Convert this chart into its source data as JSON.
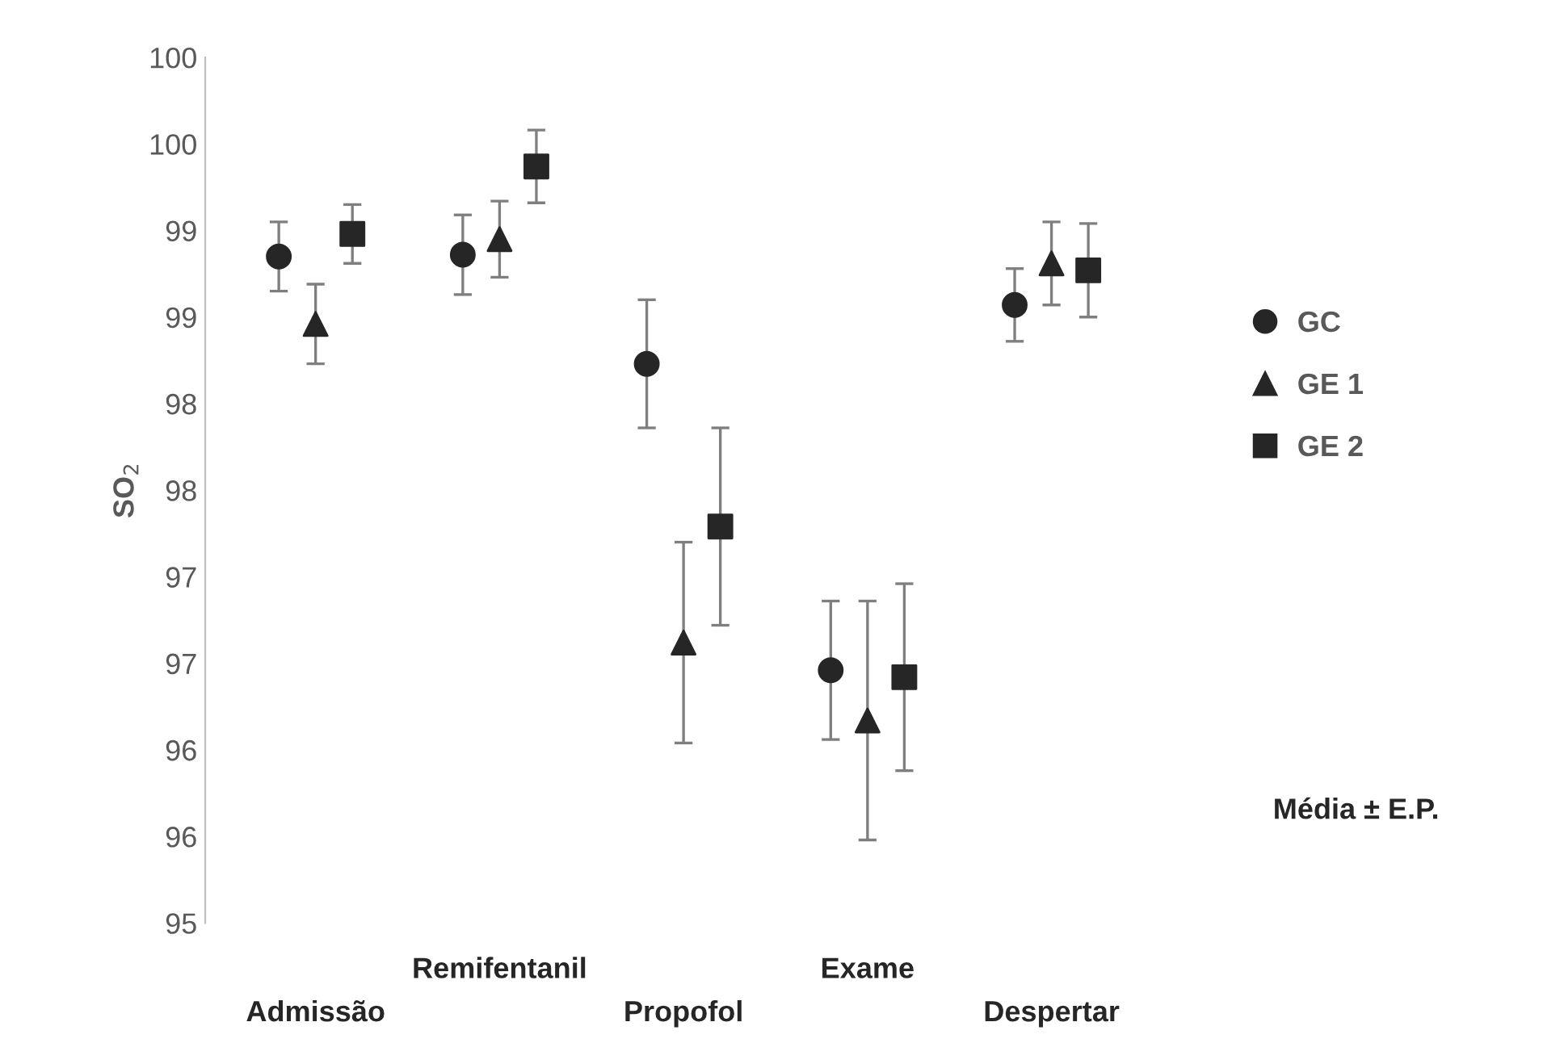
{
  "chart_data": {
    "type": "scatter",
    "ylabel": "SO$_{2}$",
    "categories": [
      "Admissão",
      "Remifentanil",
      "Propofol",
      "Exame",
      "Despertar"
    ],
    "series": [
      {
        "name": "GC",
        "color": "#262626",
        "marker": "circle",
        "values": [
          98.85,
          98.86,
          98.23,
          96.46,
          98.57
        ],
        "errors": [
          0.2,
          0.23,
          0.37,
          0.4,
          0.21
        ]
      },
      {
        "name": "GE 1",
        "color": "#262626",
        "marker": "triangle",
        "values": [
          98.46,
          98.95,
          96.62,
          96.17,
          98.81
        ],
        "errors": [
          0.23,
          0.22,
          0.58,
          0.69,
          0.24
        ]
      },
      {
        "name": "GE 2",
        "color": "#262626",
        "marker": "square",
        "values": [
          98.98,
          99.37,
          97.29,
          96.42,
          98.77
        ],
        "errors": [
          0.17,
          0.21,
          0.57,
          0.54,
          0.27
        ]
      }
    ],
    "ylim": [
      95,
      100
    ],
    "yticks": [
      95,
      {
        "value": 95.5,
        "label": "96"
      },
      96,
      {
        "value": 96.5,
        "label": "97"
      },
      97,
      {
        "value": 97.5,
        "label": "98"
      },
      98,
      {
        "value": 98.5,
        "label": "99"
      },
      99,
      {
        "value": 99.5,
        "label": "100"
      },
      100
    ],
    "legend": "right",
    "grid": false,
    "annotations": [
      "Média ± E.P."
    ]
  }
}
